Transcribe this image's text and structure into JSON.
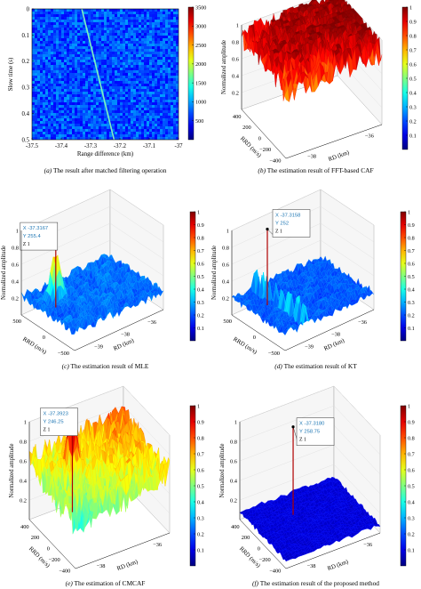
{
  "panels": [
    {
      "id": "a",
      "caption_label": "(a)",
      "caption_text": "The result after matched filtering operation",
      "chart_data": {
        "type": "heatmap",
        "xlabel": "Range difference (km)",
        "ylabel": "Slow time (s)",
        "xlim": [
          -37.5,
          -37.0
        ],
        "ylim": [
          0,
          0.5
        ],
        "xticks": [
          "-37.5",
          "-37.4",
          "-37.3",
          "-37.2",
          "-37.1",
          "-37"
        ],
        "yticks": [
          "0",
          "0.1",
          "0.2",
          "0.3",
          "0.4",
          "0.5"
        ],
        "line": {
          "x": [
            -37.33,
            -37.22
          ],
          "y": [
            0,
            0.5
          ]
        },
        "colorbar": {
          "min": 0,
          "max": 3500,
          "ticks": [
            "500",
            "1000",
            "1500",
            "2000",
            "2500",
            "3000",
            "3500"
          ]
        }
      }
    },
    {
      "id": "b",
      "caption_label": "(b)",
      "caption_text": "The estimation result of FFT-based CAF",
      "chart_data": {
        "type": "surface",
        "zlabel": "Normalized amplitude",
        "xlabel": "RD (km)",
        "ylabel": "RRD (m/s)",
        "zticks": [
          "0.2",
          "0.4",
          "0.6",
          "0.8",
          "1"
        ],
        "xticks": [
          "−38",
          "−36"
        ],
        "yticks": [
          "400",
          "200",
          "0",
          "−200",
          "−400"
        ],
        "colorbar": {
          "min": 0,
          "max": 1,
          "ticks": [
            "0.1",
            "0.2",
            "0.3",
            "0.4",
            "0.5",
            "0.6",
            "0.7",
            "0.8",
            "0.9",
            "1"
          ]
        },
        "profile": "high"
      }
    },
    {
      "id": "c",
      "caption_label": "(c)",
      "caption_text": "The estimation result of MLE",
      "chart_data": {
        "type": "surface",
        "zlabel": "Normalized amplitude",
        "xlabel": "RD (km)",
        "ylabel": "RRD (m/s)",
        "zticks": [
          "0.2",
          "0.4",
          "0.6",
          "0.8",
          "1"
        ],
        "xticks": [
          "−39",
          "−38",
          "−36"
        ],
        "yticks": [
          "500",
          "0",
          "−500"
        ],
        "colorbar": {
          "min": 0,
          "max": 1,
          "ticks": [
            "0.1",
            "0.2",
            "0.3",
            "0.4",
            "0.5",
            "0.6",
            "0.7",
            "0.8",
            "0.9",
            "1"
          ]
        },
        "profile": "low-peak",
        "datatip": {
          "x": "X -37.3167",
          "y": "Y 255.4",
          "z": "Z 1"
        }
      }
    },
    {
      "id": "d",
      "caption_label": "(d)",
      "caption_text": "The estimation result of KT",
      "chart_data": {
        "type": "surface",
        "zlabel": "Normalized amplitude",
        "xlabel": "RD (km)",
        "ylabel": "RRD (m/s)",
        "zticks": [
          "0.2",
          "0.4",
          "0.6",
          "0.8",
          "1"
        ],
        "xticks": [
          "−39",
          "−38",
          "−36"
        ],
        "yticks": [
          "500",
          "0",
          "−500"
        ],
        "colorbar": {
          "min": 0,
          "max": 1,
          "ticks": [
            "0.1",
            "0.2",
            "0.3",
            "0.4",
            "0.5",
            "0.6",
            "0.7",
            "0.8",
            "0.9",
            "1"
          ]
        },
        "profile": "low-spike",
        "datatip": {
          "x": "X -37.3158",
          "y": "Y 252",
          "z": "Z 1"
        }
      }
    },
    {
      "id": "e",
      "caption_label": "(e)",
      "caption_text": "The estimation of CMCAF",
      "chart_data": {
        "type": "surface",
        "zlabel": "Normalized amplitude",
        "xlabel": "RD (km)",
        "ylabel": "RRD (m/s)",
        "zticks": [
          "0.2",
          "0.4",
          "0.6",
          "0.8",
          "1"
        ],
        "xticks": [
          "−38",
          "−36"
        ],
        "yticks": [
          "400",
          "200",
          "0",
          "−200",
          "−400"
        ],
        "colorbar": {
          "min": 0,
          "max": 1,
          "ticks": [
            "0.1",
            "0.2",
            "0.3",
            "0.4",
            "0.5",
            "0.6",
            "0.7",
            "0.8",
            "0.9",
            "1"
          ]
        },
        "profile": "mid-peak",
        "datatip": {
          "x": "X -37.3923",
          "y": "Y 246.25",
          "z": "Z 1"
        }
      }
    },
    {
      "id": "f",
      "caption_label": "(f)",
      "caption_text": "The estimation result of the proposed method",
      "chart_data": {
        "type": "surface",
        "zlabel": "Normalized amplitude",
        "xlabel": "RD (km)",
        "ylabel": "RRD (m/s)",
        "zticks": [
          "0.2",
          "0.4",
          "0.6",
          "0.8",
          "1"
        ],
        "xticks": [
          "−38",
          "−36"
        ],
        "yticks": [
          "400",
          "200",
          "0",
          "−200",
          "−400"
        ],
        "colorbar": {
          "min": 0,
          "max": 1,
          "ticks": [
            "0.1",
            "0.2",
            "0.3",
            "0.4",
            "0.5",
            "0.6",
            "0.7",
            "0.8",
            "0.9",
            "1"
          ]
        },
        "profile": "flat-spike",
        "datatip": {
          "x": "X -37.3180",
          "y": "Y 258.75",
          "z": "Z 1"
        }
      }
    }
  ]
}
